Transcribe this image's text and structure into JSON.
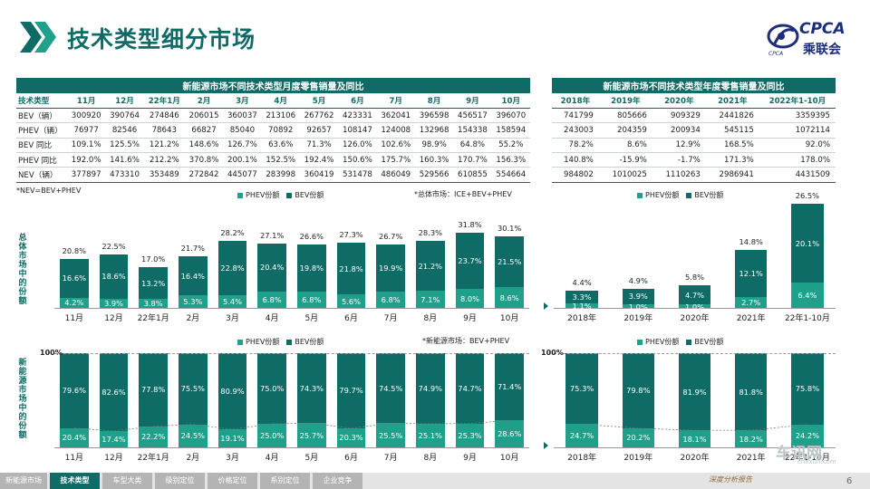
{
  "header": {
    "title": "技术类型细分市场"
  },
  "logo": {
    "text": "CPCA",
    "cn": "乘联会",
    "sub": "CPCA"
  },
  "monthly_table": {
    "title": "新能源市场不同技术类型月度零售销量及同比",
    "headers": [
      "技术类型",
      "11月",
      "12月",
      "22年1月",
      "2月",
      "3月",
      "4月",
      "5月",
      "6月",
      "7月",
      "8月",
      "9月",
      "10月"
    ],
    "rows": [
      [
        "BEV（辆）",
        "300920",
        "390764",
        "274846",
        "206015",
        "360037",
        "213106",
        "267762",
        "423331",
        "362041",
        "396598",
        "456517",
        "396070"
      ],
      [
        "PHEV（辆）",
        "76977",
        "82546",
        "78643",
        "66827",
        "85040",
        "70892",
        "92657",
        "108147",
        "124008",
        "132968",
        "154338",
        "158594"
      ],
      [
        "BEV 同比",
        "109.1%",
        "125.5%",
        "121.2%",
        "148.6%",
        "126.7%",
        "63.6%",
        "71.3%",
        "126.0%",
        "102.6%",
        "98.9%",
        "64.8%",
        "55.2%"
      ],
      [
        "PHEV 同比",
        "192.0%",
        "141.6%",
        "212.2%",
        "370.8%",
        "200.1%",
        "152.5%",
        "192.4%",
        "150.6%",
        "175.7%",
        "160.3%",
        "170.7%",
        "156.3%"
      ],
      [
        "NEV（辆）",
        "377897",
        "473310",
        "353489",
        "272842",
        "445077",
        "283998",
        "360419",
        "531478",
        "486049",
        "529566",
        "610855",
        "554664"
      ]
    ]
  },
  "annual_table": {
    "title": "新能源市场不同技术类型年度零售销量及同比",
    "headers": [
      "2018年",
      "2019年",
      "2020年",
      "2021年",
      "2022年1-10月"
    ],
    "rows": [
      [
        "741799",
        "805666",
        "909329",
        "2441826",
        "3359395"
      ],
      [
        "243003",
        "204359",
        "200934",
        "545115",
        "1072114"
      ],
      [
        "78.2%",
        "8.6%",
        "12.9%",
        "168.5%",
        "92.0%"
      ],
      [
        "140.8%",
        "-15.9%",
        "-1.7%",
        "171.3%",
        "178.0%"
      ],
      [
        "984802",
        "1010025",
        "1110263",
        "2986941",
        "4431509"
      ]
    ]
  },
  "notes": {
    "nev_formula": "*NEV=BEV+PHEV",
    "total_market": "*总体市场：ICE+BEV+PHEV",
    "nev_market": "*新能源市场：BEV+PHEV",
    "pct100_left": "100%",
    "pct100_right": "100%"
  },
  "axis_labels": {
    "top": "总体市场中的份额",
    "bottom": "新能源市场中的份额"
  },
  "legend": {
    "phev": "PHEV份额",
    "bev": "BEV份额"
  },
  "colors": {
    "bev": "#0e6b66",
    "phev": "#1fa08a",
    "accent": "#0e6b66"
  },
  "chart_data": [
    {
      "type": "bar",
      "stacked": true,
      "title": "",
      "ylabel": "总体市场中的份额",
      "categories": [
        "11月",
        "12月",
        "22年1月",
        "2月",
        "3月",
        "4月",
        "5月",
        "6月",
        "7月",
        "8月",
        "9月",
        "10月"
      ],
      "series": [
        {
          "name": "PHEV份额",
          "values": [
            4.2,
            3.9,
            3.8,
            5.3,
            5.4,
            6.8,
            6.8,
            5.6,
            6.8,
            7.1,
            8.0,
            8.6
          ],
          "labels": [
            "4.2%",
            "3.9%",
            "3.8%",
            "5.3%",
            "5.4%",
            "6.8%",
            "6.8%",
            "5.6%",
            "6.8%",
            "7.1%",
            "8.0%",
            "8.6%"
          ]
        },
        {
          "name": "BEV份额",
          "values": [
            16.6,
            18.6,
            13.2,
            16.4,
            22.8,
            20.4,
            19.8,
            21.8,
            19.9,
            21.2,
            23.7,
            21.5
          ],
          "labels": [
            "16.6%",
            "18.6%",
            "13.2%",
            "16.4%",
            "22.8%",
            "20.4%",
            "19.8%",
            "21.8%",
            "19.9%",
            "21.2%",
            "23.7%",
            "21.5%"
          ]
        }
      ],
      "totals": [
        "20.8%",
        "22.5%",
        "17.0%",
        "21.7%",
        "28.2%",
        "27.1%",
        "26.6%",
        "27.3%",
        "26.7%",
        "28.3%",
        "31.8%",
        "30.1%"
      ],
      "ylim": [
        0,
        35
      ]
    },
    {
      "type": "bar",
      "stacked": true,
      "title": "",
      "ylabel": "总体市场中的份额",
      "categories": [
        "2018年",
        "2019年",
        "2020年",
        "2021年",
        "22年1-10月"
      ],
      "series": [
        {
          "name": "PHEV份额",
          "values": [
            1.1,
            1.0,
            1.0,
            2.7,
            6.4
          ],
          "labels": [
            "1.1%",
            "1.0%",
            "1.0%",
            "2.7%",
            "6.4%"
          ]
        },
        {
          "name": "BEV份额",
          "values": [
            3.3,
            3.9,
            4.7,
            12.1,
            20.1
          ],
          "labels": [
            "3.3%",
            "3.9%",
            "4.7%",
            "12.1%",
            "20.1%"
          ]
        }
      ],
      "totals": [
        "4.4%",
        "4.9%",
        "5.8%",
        "14.8%",
        "26.5%"
      ],
      "ylim": [
        0,
        30
      ]
    },
    {
      "type": "bar",
      "stacked": true,
      "percent": true,
      "title": "",
      "ylabel": "新能源市场中的份额",
      "categories": [
        "11月",
        "12月",
        "22年1月",
        "2月",
        "3月",
        "4月",
        "5月",
        "6月",
        "7月",
        "8月",
        "9月",
        "10月"
      ],
      "series": [
        {
          "name": "PHEV份额",
          "values": [
            20.4,
            17.4,
            22.2,
            24.5,
            19.1,
            25.0,
            25.7,
            20.3,
            25.5,
            25.1,
            25.3,
            28.6
          ],
          "labels": [
            "20.4%",
            "17.4%",
            "22.2%",
            "24.5%",
            "19.1%",
            "25.0%",
            "25.7%",
            "20.3%",
            "25.5%",
            "25.1%",
            "25.3%",
            "28.6%"
          ]
        },
        {
          "name": "BEV份额",
          "values": [
            79.6,
            82.6,
            77.8,
            75.5,
            80.9,
            75.0,
            74.3,
            79.7,
            74.5,
            74.9,
            74.7,
            71.4
          ],
          "labels": [
            "79.6%",
            "82.6%",
            "77.8%",
            "75.5%",
            "80.9%",
            "75.0%",
            "74.3%",
            "79.7%",
            "74.5%",
            "74.9%",
            "74.7%",
            "71.4%"
          ]
        }
      ],
      "ylim": [
        0,
        100
      ]
    },
    {
      "type": "bar",
      "stacked": true,
      "percent": true,
      "title": "",
      "ylabel": "新能源市场中的份额",
      "categories": [
        "2018年",
        "2019年",
        "2020年",
        "2021年",
        "22年1-10月"
      ],
      "series": [
        {
          "name": "PHEV份额",
          "values": [
            24.7,
            20.2,
            18.1,
            18.2,
            24.2
          ],
          "labels": [
            "24.7%",
            "20.2%",
            "18.1%",
            "18.2%",
            "24.2%"
          ]
        },
        {
          "name": "BEV份额",
          "values": [
            75.3,
            79.8,
            81.9,
            81.8,
            75.8
          ],
          "labels": [
            "75.3%",
            "79.8%",
            "81.9%",
            "81.8%",
            "75.8%"
          ]
        }
      ],
      "ylim": [
        0,
        100
      ]
    }
  ],
  "footer": {
    "tabs": [
      "新能源市场",
      "技术类型",
      "车型大类",
      "级别定位",
      "价格定位",
      "系别定位",
      "企业竞争"
    ],
    "active": 1,
    "slogan": "深度分析报告",
    "page": "6",
    "watermark": "车讯网",
    "watermark_url": "chexun.com"
  }
}
